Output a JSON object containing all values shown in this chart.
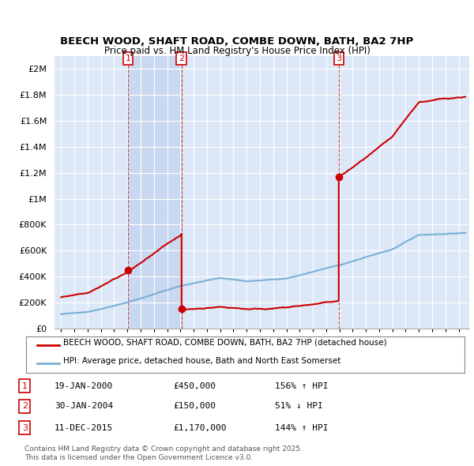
{
  "title": "BEECH WOOD, SHAFT ROAD, COMBE DOWN, BATH, BA2 7HP",
  "subtitle": "Price paid vs. HM Land Registry's House Price Index (HPI)",
  "ylabel_ticks": [
    "£0",
    "£200K",
    "£400K",
    "£600K",
    "£800K",
    "£1M",
    "£1.2M",
    "£1.4M",
    "£1.6M",
    "£1.8M",
    "£2M"
  ],
  "ytick_vals": [
    0,
    200000,
    400000,
    600000,
    800000,
    1000000,
    1200000,
    1400000,
    1600000,
    1800000,
    2000000
  ],
  "ylim": [
    0,
    2100000
  ],
  "xlim_start": 1994.5,
  "xlim_end": 2025.8,
  "background_color": "#ffffff",
  "plot_bg_color": "#dce8f8",
  "grid_color": "#ffffff",
  "sale_color": "#cc0000",
  "hpi_color": "#7ab0d4",
  "shade_color": "#c8d8f0",
  "transaction_markers": [
    {
      "num": 1,
      "year": 2000.05,
      "price": 450000,
      "date": "19-JAN-2000",
      "pct": "156% ↑ HPI"
    },
    {
      "num": 2,
      "year": 2004.08,
      "price": 150000,
      "date": "30-JAN-2004",
      "pct": "51% ↓ HPI"
    },
    {
      "num": 3,
      "year": 2015.95,
      "price": 1170000,
      "date": "11-DEC-2015",
      "pct": "144% ↑ HPI"
    }
  ],
  "legend_sale_label": "BEECH WOOD, SHAFT ROAD, COMBE DOWN, BATH, BA2 7HP (detached house)",
  "legend_hpi_label": "HPI: Average price, detached house, Bath and North East Somerset",
  "footer1": "Contains HM Land Registry data © Crown copyright and database right 2025.",
  "footer2": "This data is licensed under the Open Government Licence v3.0.",
  "table_rows": [
    {
      "num": 1,
      "date": "19-JAN-2000",
      "price": "£450,000",
      "pct": "156% ↑ HPI"
    },
    {
      "num": 2,
      "date": "30-JAN-2004",
      "price": "£150,000",
      "pct": "51% ↓ HPI"
    },
    {
      "num": 3,
      "date": "11-DEC-2015",
      "price": "£1,170,000",
      "pct": "144% ↑ HPI"
    }
  ]
}
